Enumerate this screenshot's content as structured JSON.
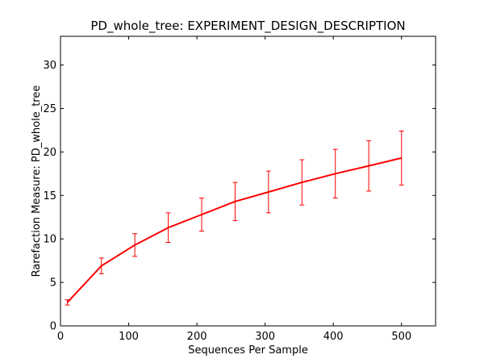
{
  "chart_data": {
    "type": "line",
    "title": "PD_whole_tree: EXPERIMENT_DESIGN_DESCRIPTION",
    "xlabel": "Sequences Per Sample",
    "ylabel": "Rarefaction Measure: PD_whole_tree",
    "xlim": [
      0,
      550
    ],
    "ylim": [
      0,
      33.3
    ],
    "xticks": [
      0,
      100,
      200,
      300,
      400,
      500
    ],
    "yticks": [
      0,
      5,
      10,
      15,
      20,
      25,
      30
    ],
    "grid": false,
    "legend": "none",
    "series": [
      {
        "color": "#ff0000",
        "x": [
          10,
          60,
          109,
          158,
          207,
          256,
          305,
          354,
          403,
          452,
          500
        ],
        "y": [
          2.7,
          6.9,
          9.3,
          11.3,
          12.8,
          14.3,
          15.4,
          16.5,
          17.5,
          18.4,
          19.3
        ],
        "err": [
          0.3,
          0.9,
          1.3,
          1.7,
          1.9,
          2.2,
          2.4,
          2.6,
          2.8,
          2.9,
          3.1
        ]
      }
    ]
  }
}
